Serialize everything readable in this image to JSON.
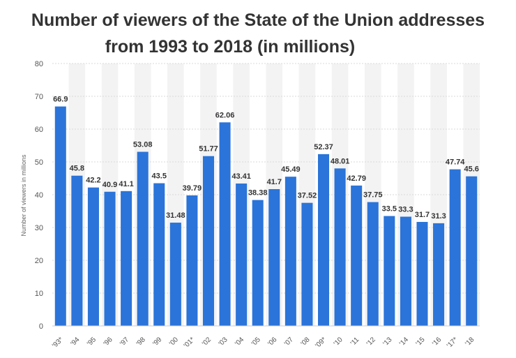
{
  "chart_data": {
    "type": "bar",
    "title": "Number of viewers of the State of the Union addresses",
    "subtitle": "from 1993 to 2018 (in millions)",
    "ylabel": "Number of viewers in millions",
    "xlabel": "",
    "ylim": [
      0,
      80
    ],
    "yticks": [
      0,
      10,
      20,
      30,
      40,
      50,
      60,
      70,
      80
    ],
    "grid": true,
    "bar_color": "#2b74d9",
    "band_color": "#f3f3f3",
    "categories": [
      "'93*",
      "'94",
      "'95",
      "'96",
      "'97",
      "'98",
      "'99",
      "'00",
      "'01*",
      "'02",
      "'03",
      "'04",
      "'05",
      "'06",
      "'07",
      "'08",
      "'09*",
      "'10",
      "'11",
      "'12",
      "'13",
      "'14",
      "'15",
      "'16",
      "'17*",
      "'18"
    ],
    "values": [
      66.9,
      45.8,
      42.2,
      40.9,
      41.1,
      53.08,
      43.5,
      31.48,
      39.79,
      51.77,
      62.06,
      43.41,
      38.38,
      41.7,
      45.49,
      37.52,
      52.37,
      48.01,
      42.79,
      37.75,
      33.5,
      33.3,
      31.7,
      31.3,
      47.74,
      45.6
    ],
    "value_labels": [
      "66.9",
      "45.8",
      "42.2",
      "40.9",
      "41.1",
      "53.08",
      "43.5",
      "31.48",
      "39.79",
      "51.77",
      "62.06",
      "43.41",
      "38.38",
      "41.7",
      "45.49",
      "37.52",
      "52.37",
      "48.01",
      "42.79",
      "37.75",
      "33.5",
      "33.3",
      "31.7",
      "31.3",
      "47.74",
      "45.6"
    ]
  }
}
